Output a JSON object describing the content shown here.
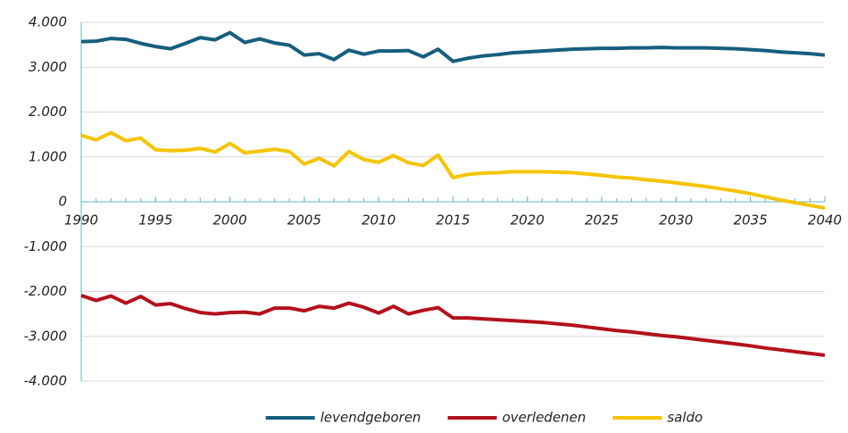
{
  "chart_data": {
    "type": "line",
    "x": [
      1990,
      1991,
      1992,
      1993,
      1994,
      1995,
      1996,
      1997,
      1998,
      1999,
      2000,
      2001,
      2002,
      2003,
      2004,
      2005,
      2006,
      2007,
      2008,
      2009,
      2010,
      2011,
      2012,
      2013,
      2014,
      2015,
      2016,
      2017,
      2018,
      2019,
      2020,
      2021,
      2022,
      2023,
      2024,
      2025,
      2026,
      2027,
      2028,
      2029,
      2030,
      2031,
      2032,
      2033,
      2034,
      2035,
      2036,
      2037,
      2038,
      2039,
      2040
    ],
    "series": [
      {
        "name": "levendgeboren",
        "color": "#165e7e",
        "values": [
          3570,
          3580,
          3640,
          3620,
          3530,
          3460,
          3410,
          3530,
          3660,
          3610,
          3770,
          3550,
          3630,
          3540,
          3490,
          3270,
          3300,
          3170,
          3380,
          3290,
          3360,
          3360,
          3370,
          3230,
          3400,
          3130,
          3200,
          3250,
          3280,
          3320,
          3340,
          3360,
          3380,
          3400,
          3410,
          3420,
          3420,
          3430,
          3430,
          3440,
          3430,
          3430,
          3430,
          3420,
          3410,
          3390,
          3370,
          3340,
          3320,
          3300,
          3270
        ]
      },
      {
        "name": "overledenen",
        "color": "#b3111d",
        "values": [
          -2090,
          -2200,
          -2100,
          -2260,
          -2110,
          -2300,
          -2270,
          -2380,
          -2470,
          -2500,
          -2470,
          -2460,
          -2500,
          -2370,
          -2370,
          -2430,
          -2330,
          -2370,
          -2260,
          -2350,
          -2480,
          -2330,
          -2500,
          -2420,
          -2360,
          -2590,
          -2590,
          -2610,
          -2630,
          -2650,
          -2670,
          -2690,
          -2720,
          -2750,
          -2790,
          -2830,
          -2870,
          -2900,
          -2940,
          -2980,
          -3010,
          -3050,
          -3090,
          -3130,
          -3170,
          -3210,
          -3260,
          -3300,
          -3340,
          -3380,
          -3420
        ]
      },
      {
        "name": "saldo",
        "color": "#f5c400",
        "values": [
          1480,
          1380,
          1540,
          1360,
          1420,
          1160,
          1140,
          1150,
          1190,
          1110,
          1300,
          1090,
          1130,
          1170,
          1120,
          840,
          970,
          800,
          1120,
          940,
          880,
          1030,
          870,
          810,
          1040,
          540,
          610,
          640,
          650,
          670,
          670,
          670,
          660,
          650,
          620,
          590,
          550,
          530,
          490,
          460,
          420,
          380,
          340,
          290,
          240,
          180,
          110,
          40,
          -20,
          -80,
          -140
        ]
      }
    ],
    "xlim": [
      1990,
      2040
    ],
    "xticks": [
      1990,
      1995,
      2000,
      2005,
      2010,
      2015,
      2020,
      2025,
      2030,
      2035,
      2040
    ],
    "ylim": [
      -4000,
      4000
    ],
    "yticks": [
      {
        "value": 4000,
        "label": "4.000"
      },
      {
        "value": 3000,
        "label": "3.000"
      },
      {
        "value": 2000,
        "label": "2.000"
      },
      {
        "value": 1000,
        "label": "1.000"
      },
      0,
      {
        "value": -1000,
        "label": "-1.000"
      },
      {
        "value": -2000,
        "label": "-2.000"
      },
      {
        "value": -3000,
        "label": "-3.000"
      },
      {
        "value": -4000,
        "label": "-4.000"
      }
    ],
    "grid": true,
    "legend": "bottom"
  }
}
